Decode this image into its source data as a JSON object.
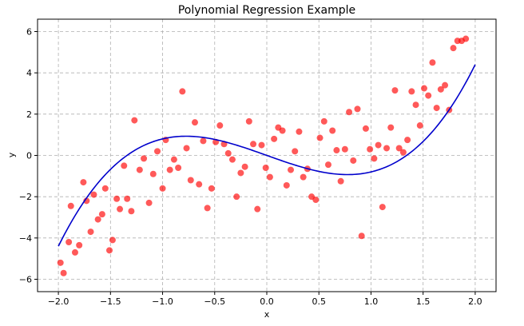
{
  "chart_data": {
    "type": "scatter",
    "title": "Polynomial Regression Example",
    "xlabel": "x",
    "ylabel": "y",
    "xlim": [
      -2.2,
      2.2
    ],
    "ylim": [
      -6.6,
      6.6
    ],
    "xticks": [
      -2.0,
      -1.5,
      -1.0,
      -0.5,
      0.0,
      0.5,
      1.0,
      1.5,
      2.0
    ],
    "xtick_labels": [
      "−2.0",
      "−1.5",
      "−1.0",
      "−0.5",
      "0.0",
      "0.5",
      "1.0",
      "1.5",
      "2.0"
    ],
    "yticks": [
      -6,
      -4,
      -2,
      0,
      2,
      4,
      6
    ],
    "ytick_labels": [
      "−6",
      "−4",
      "−2",
      "0",
      "2",
      "4",
      "6"
    ],
    "grid": true,
    "series": [
      {
        "kind": "scatter",
        "color": "#ff0000",
        "opacity": 0.65,
        "points": [
          [
            -1.98,
            -5.2
          ],
          [
            -1.95,
            -5.7
          ],
          [
            -1.9,
            -4.2
          ],
          [
            -1.88,
            -2.45
          ],
          [
            -1.84,
            -4.7
          ],
          [
            -1.8,
            -4.35
          ],
          [
            -1.76,
            -1.3
          ],
          [
            -1.73,
            -2.2
          ],
          [
            -1.69,
            -3.7
          ],
          [
            -1.66,
            -1.9
          ],
          [
            -1.62,
            -3.1
          ],
          [
            -1.58,
            -2.85
          ],
          [
            -1.55,
            -1.6
          ],
          [
            -1.51,
            -4.6
          ],
          [
            -1.48,
            -4.1
          ],
          [
            -1.44,
            -2.1
          ],
          [
            -1.41,
            -2.6
          ],
          [
            -1.37,
            -0.5
          ],
          [
            -1.34,
            -2.1
          ],
          [
            -1.3,
            -2.7
          ],
          [
            -1.27,
            1.7
          ],
          [
            -1.22,
            -0.7
          ],
          [
            -1.18,
            -0.15
          ],
          [
            -1.13,
            -2.3
          ],
          [
            -1.09,
            -0.9
          ],
          [
            -1.05,
            0.2
          ],
          [
            -1.0,
            -1.6
          ],
          [
            -0.97,
            0.75
          ],
          [
            -0.93,
            -0.7
          ],
          [
            -0.89,
            -0.2
          ],
          [
            -0.85,
            -0.6
          ],
          [
            -0.81,
            3.1
          ],
          [
            -0.77,
            0.35
          ],
          [
            -0.73,
            -1.2
          ],
          [
            -0.69,
            1.6
          ],
          [
            -0.65,
            -1.4
          ],
          [
            -0.61,
            0.7
          ],
          [
            -0.57,
            -2.55
          ],
          [
            -0.53,
            -1.6
          ],
          [
            -0.49,
            0.65
          ],
          [
            -0.45,
            1.45
          ],
          [
            -0.41,
            0.55
          ],
          [
            -0.37,
            0.1
          ],
          [
            -0.33,
            -0.2
          ],
          [
            -0.29,
            -2.0
          ],
          [
            -0.25,
            -0.85
          ],
          [
            -0.21,
            -0.55
          ],
          [
            -0.17,
            1.65
          ],
          [
            -0.13,
            0.55
          ],
          [
            -0.09,
            -2.6
          ],
          [
            -0.05,
            0.5
          ],
          [
            -0.01,
            -0.6
          ],
          [
            0.03,
            -1.05
          ],
          [
            0.07,
            0.8
          ],
          [
            0.11,
            1.35
          ],
          [
            0.15,
            1.2
          ],
          [
            0.19,
            -1.45
          ],
          [
            0.23,
            -0.7
          ],
          [
            0.27,
            0.2
          ],
          [
            0.31,
            1.15
          ],
          [
            0.35,
            -1.05
          ],
          [
            0.39,
            -0.65
          ],
          [
            0.43,
            -2.0
          ],
          [
            0.47,
            -2.15
          ],
          [
            0.51,
            0.85
          ],
          [
            0.55,
            1.65
          ],
          [
            0.59,
            -0.45
          ],
          [
            0.63,
            1.2
          ],
          [
            0.67,
            0.25
          ],
          [
            0.71,
            -1.25
          ],
          [
            0.75,
            0.3
          ],
          [
            0.79,
            2.1
          ],
          [
            0.83,
            -0.25
          ],
          [
            0.87,
            2.25
          ],
          [
            0.91,
            -3.9
          ],
          [
            0.95,
            1.3
          ],
          [
            0.99,
            0.3
          ],
          [
            1.03,
            -0.15
          ],
          [
            1.07,
            0.5
          ],
          [
            1.11,
            -2.5
          ],
          [
            1.15,
            0.35
          ],
          [
            1.19,
            1.35
          ],
          [
            1.23,
            3.15
          ],
          [
            1.27,
            0.35
          ],
          [
            1.31,
            0.15
          ],
          [
            1.35,
            0.75
          ],
          [
            1.39,
            3.1
          ],
          [
            1.43,
            2.45
          ],
          [
            1.47,
            1.45
          ],
          [
            1.51,
            3.25
          ],
          [
            1.55,
            2.9
          ],
          [
            1.59,
            4.5
          ],
          [
            1.63,
            2.3
          ],
          [
            1.67,
            3.2
          ],
          [
            1.71,
            3.4
          ],
          [
            1.75,
            2.2
          ],
          [
            1.79,
            5.2
          ],
          [
            1.83,
            5.55
          ],
          [
            1.87,
            5.55
          ],
          [
            1.91,
            5.65
          ]
        ]
      },
      {
        "kind": "line",
        "color": "#0000cc",
        "formula": "y = x^3 - 1.8x",
        "x_range": [
          -2.0,
          2.0
        ]
      }
    ]
  }
}
